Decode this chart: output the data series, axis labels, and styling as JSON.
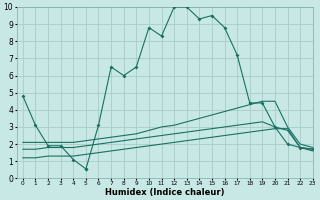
{
  "xlabel": "Humidex (Indice chaleur)",
  "bg_color": "#c8e8e5",
  "grid_color": "#a8ccc9",
  "line_color": "#1a7060",
  "xlim": [
    -0.5,
    23
  ],
  "ylim": [
    0,
    10
  ],
  "xticks": [
    0,
    1,
    2,
    3,
    4,
    5,
    6,
    7,
    8,
    9,
    10,
    11,
    12,
    13,
    14,
    15,
    16,
    17,
    18,
    19,
    20,
    21,
    22,
    23
  ],
  "yticks": [
    0,
    1,
    2,
    3,
    4,
    5,
    6,
    7,
    8,
    9,
    10
  ],
  "line1_x": [
    0,
    1,
    2,
    3,
    4,
    5,
    5,
    6,
    7,
    8,
    9,
    10,
    11,
    12,
    13,
    14,
    15,
    16,
    17,
    18,
    19,
    20,
    21,
    22,
    23
  ],
  "line1_y": [
    4.8,
    3.1,
    1.9,
    1.9,
    1.1,
    0.55,
    0.55,
    3.1,
    6.5,
    6.0,
    6.5,
    8.8,
    8.3,
    10.0,
    10.0,
    9.3,
    9.5,
    8.8,
    7.2,
    4.4,
    4.4,
    3.0,
    2.0,
    1.8,
    1.7
  ],
  "line2_x": [
    0,
    1,
    2,
    3,
    4,
    5,
    6,
    7,
    8,
    9,
    10,
    11,
    12,
    13,
    14,
    15,
    16,
    17,
    18,
    19,
    20,
    21,
    22,
    23
  ],
  "line2_y": [
    2.1,
    2.1,
    2.1,
    2.1,
    2.1,
    2.2,
    2.3,
    2.4,
    2.5,
    2.6,
    2.8,
    3.0,
    3.1,
    3.3,
    3.5,
    3.7,
    3.9,
    4.1,
    4.3,
    4.5,
    4.5,
    3.0,
    2.0,
    1.8
  ],
  "line3_x": [
    0,
    1,
    2,
    3,
    4,
    5,
    6,
    7,
    8,
    9,
    10,
    11,
    12,
    13,
    14,
    15,
    16,
    17,
    18,
    19,
    20,
    21,
    22,
    23
  ],
  "line3_y": [
    1.7,
    1.7,
    1.8,
    1.8,
    1.8,
    1.9,
    2.0,
    2.1,
    2.2,
    2.3,
    2.4,
    2.5,
    2.6,
    2.7,
    2.8,
    2.9,
    3.0,
    3.1,
    3.2,
    3.3,
    3.0,
    2.8,
    1.8,
    1.7
  ],
  "line4_x": [
    0,
    1,
    2,
    3,
    4,
    5,
    6,
    7,
    8,
    9,
    10,
    11,
    12,
    13,
    14,
    15,
    16,
    17,
    18,
    19,
    20,
    21,
    22,
    23
  ],
  "line4_y": [
    1.2,
    1.2,
    1.3,
    1.3,
    1.3,
    1.4,
    1.5,
    1.6,
    1.7,
    1.8,
    1.9,
    2.0,
    2.1,
    2.2,
    2.3,
    2.4,
    2.5,
    2.6,
    2.7,
    2.8,
    2.9,
    2.9,
    1.8,
    1.6
  ]
}
